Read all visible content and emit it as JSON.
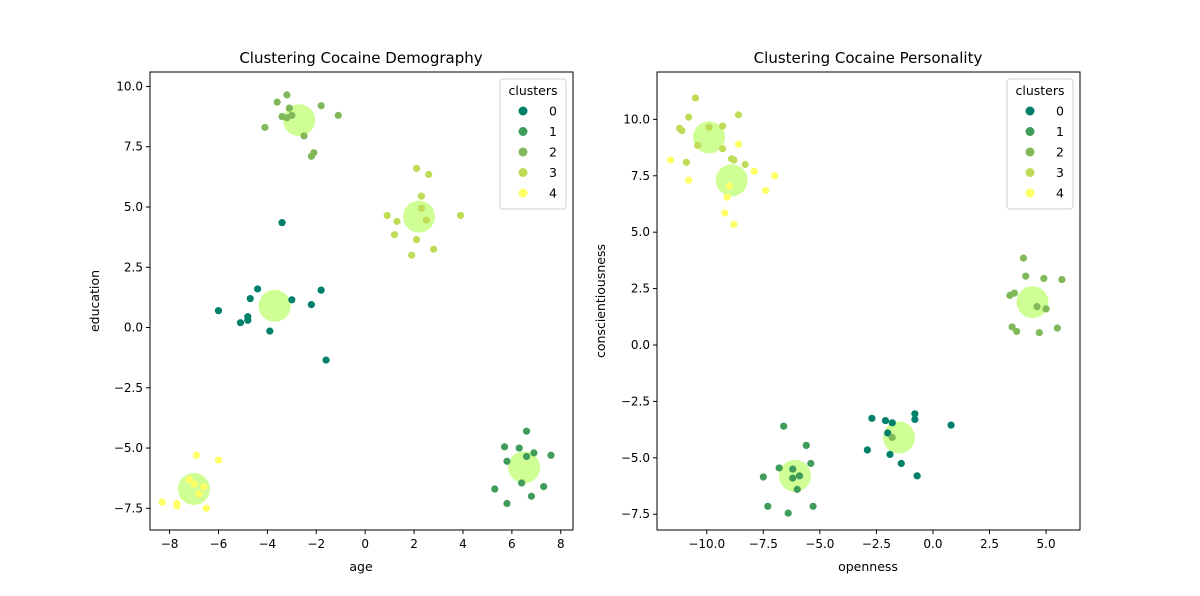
{
  "colors": {
    "cluster": [
      "#00806a",
      "#409c5a",
      "#80b85a",
      "#bfdc57",
      "#ffff66"
    ],
    "centroid": "#bfff70"
  },
  "chart_data": [
    {
      "type": "scatter",
      "title": "Clustering Cocaine Demography",
      "xlabel": "age",
      "ylabel": "education",
      "xlim": [
        -8.8,
        8.5
      ],
      "ylim": [
        -8.4,
        10.6
      ],
      "xticks": [
        -8,
        -6,
        -4,
        -2,
        0,
        2,
        4,
        6,
        8
      ],
      "xtick_labels": [
        "−8",
        "−6",
        "−4",
        "−2",
        "0",
        "2",
        "4",
        "6",
        "8"
      ],
      "yticks": [
        -7.5,
        -5.0,
        -2.5,
        0.0,
        2.5,
        5.0,
        7.5,
        10.0
      ],
      "ytick_labels": [
        "−7.5",
        "−5.0",
        "−2.5",
        "0.0",
        "2.5",
        "5.0",
        "7.5",
        "10.0"
      ],
      "legend": {
        "title": "clusters",
        "labels": [
          "0",
          "1",
          "2",
          "3",
          "4"
        ],
        "position": "upper right"
      },
      "centroids": [
        [
          -3.7,
          0.9
        ],
        [
          6.5,
          -5.8
        ],
        [
          -2.7,
          8.6
        ],
        [
          2.2,
          4.6
        ],
        [
          -7.0,
          -6.7
        ]
      ],
      "series": [
        {
          "name": "0",
          "points": [
            [
              -3.4,
              4.35
            ],
            [
              -4.4,
              1.6
            ],
            [
              -4.7,
              1.2
            ],
            [
              -3.0,
              1.15
            ],
            [
              -1.8,
              1.55
            ],
            [
              -2.2,
              0.95
            ],
            [
              -6.0,
              0.7
            ],
            [
              -4.8,
              0.45
            ],
            [
              -4.8,
              0.3
            ],
            [
              -5.1,
              0.2
            ],
            [
              -3.9,
              -0.15
            ],
            [
              -1.6,
              -1.35
            ]
          ]
        },
        {
          "name": "1",
          "points": [
            [
              6.6,
              -4.3
            ],
            [
              5.7,
              -4.95
            ],
            [
              6.3,
              -5.0
            ],
            [
              6.9,
              -5.2
            ],
            [
              7.6,
              -5.3
            ],
            [
              5.8,
              -5.55
            ],
            [
              6.6,
              -5.35
            ],
            [
              7.3,
              -6.6
            ],
            [
              6.4,
              -6.45
            ],
            [
              5.3,
              -6.7
            ],
            [
              6.8,
              -7.0
            ],
            [
              5.8,
              -7.3
            ]
          ]
        },
        {
          "name": "2",
          "points": [
            [
              -3.2,
              9.65
            ],
            [
              -3.6,
              9.35
            ],
            [
              -3.1,
              9.1
            ],
            [
              -1.8,
              9.2
            ],
            [
              -3.0,
              8.8
            ],
            [
              -3.4,
              8.75
            ],
            [
              -3.2,
              8.7
            ],
            [
              -1.1,
              8.8
            ],
            [
              -4.1,
              8.3
            ],
            [
              -2.5,
              7.95
            ],
            [
              -2.1,
              7.25
            ],
            [
              -2.2,
              7.1
            ]
          ]
        },
        {
          "name": "3",
          "points": [
            [
              2.1,
              6.6
            ],
            [
              2.6,
              6.35
            ],
            [
              2.3,
              5.45
            ],
            [
              2.3,
              4.95
            ],
            [
              0.9,
              4.65
            ],
            [
              3.9,
              4.65
            ],
            [
              2.5,
              4.45
            ],
            [
              1.3,
              4.4
            ],
            [
              1.2,
              3.85
            ],
            [
              2.1,
              3.65
            ],
            [
              2.8,
              3.25
            ],
            [
              1.9,
              3.0
            ]
          ]
        },
        {
          "name": "4",
          "points": [
            [
              -6.9,
              -5.3
            ],
            [
              -6.0,
              -5.5
            ],
            [
              -7.2,
              -6.3
            ],
            [
              -7.0,
              -6.5
            ],
            [
              -6.6,
              -6.6
            ],
            [
              -6.8,
              -6.9
            ],
            [
              -8.3,
              -7.25
            ],
            [
              -7.7,
              -7.3
            ],
            [
              -7.7,
              -7.4
            ],
            [
              -6.5,
              -7.5
            ]
          ]
        }
      ]
    },
    {
      "type": "scatter",
      "title": "Clustering Cocaine Personality",
      "xlabel": "openness",
      "ylabel": "conscientiousness",
      "xlim": [
        -12.2,
        6.5
      ],
      "ylim": [
        -8.2,
        12.1
      ],
      "xticks": [
        -10.0,
        -7.5,
        -5.0,
        -2.5,
        0.0,
        2.5,
        5.0
      ],
      "xtick_labels": [
        "−10.0",
        "−7.5",
        "−5.0",
        "−2.5",
        "0.0",
        "2.5",
        "5.0"
      ],
      "yticks": [
        -7.5,
        -5.0,
        -2.5,
        0.0,
        2.5,
        5.0,
        7.5,
        10.0
      ],
      "ytick_labels": [
        "−7.5",
        "−5.0",
        "−2.5",
        "0.0",
        "2.5",
        "5.0",
        "7.5",
        "10.0"
      ],
      "legend": {
        "title": "clusters",
        "labels": [
          "0",
          "1",
          "2",
          "3",
          "4"
        ],
        "position": "upper right"
      },
      "centroids": [
        [
          -9.9,
          9.2
        ],
        [
          -8.9,
          7.3
        ],
        [
          4.4,
          1.9
        ],
        [
          -1.5,
          -4.1
        ],
        [
          -6.1,
          -5.8
        ]
      ],
      "series": [
        {
          "name": "0",
          "points": [
            [
              -2.7,
              -3.25
            ],
            [
              -2.1,
              -3.35
            ],
            [
              -1.8,
              -3.45
            ],
            [
              -0.8,
              -3.05
            ],
            [
              -0.8,
              -3.3
            ],
            [
              0.8,
              -3.55
            ],
            [
              -2.9,
              -4.65
            ],
            [
              -1.9,
              -4.85
            ],
            [
              -1.4,
              -5.25
            ],
            [
              -0.7,
              -5.8
            ],
            [
              -2.0,
              -3.9
            ]
          ]
        },
        {
          "name": "1",
          "points": [
            [
              -6.6,
              -3.6
            ],
            [
              -5.6,
              -4.45
            ],
            [
              -6.8,
              -5.45
            ],
            [
              -6.2,
              -5.5
            ],
            [
              -5.4,
              -5.25
            ],
            [
              -7.5,
              -5.85
            ],
            [
              -5.9,
              -5.8
            ],
            [
              -6.2,
              -5.9
            ],
            [
              -6.0,
              -6.4
            ],
            [
              -7.3,
              -7.15
            ],
            [
              -5.3,
              -7.15
            ],
            [
              -6.4,
              -7.45
            ]
          ]
        },
        {
          "name": "2",
          "points": [
            [
              4.0,
              3.85
            ],
            [
              3.6,
              2.3
            ],
            [
              4.1,
              3.05
            ],
            [
              4.9,
              2.95
            ],
            [
              5.7,
              2.9
            ],
            [
              3.4,
              2.2
            ],
            [
              4.6,
              1.7
            ],
            [
              5.0,
              1.6
            ],
            [
              3.5,
              0.8
            ],
            [
              3.7,
              0.6
            ],
            [
              4.7,
              0.55
            ],
            [
              5.5,
              0.75
            ],
            [
              -1.8,
              -4.1
            ]
          ]
        },
        {
          "name": "3",
          "points": [
            [
              -10.5,
              10.95
            ],
            [
              -10.8,
              10.1
            ],
            [
              -8.6,
              10.2
            ],
            [
              -11.2,
              9.6
            ],
            [
              -11.1,
              9.5
            ],
            [
              -9.3,
              9.7
            ],
            [
              -9.9,
              9.65
            ],
            [
              -10.4,
              8.85
            ],
            [
              -9.3,
              8.7
            ],
            [
              -10.9,
              8.1
            ],
            [
              -8.8,
              8.2
            ],
            [
              -8.3,
              8.0
            ],
            [
              -8.9,
              8.25
            ]
          ]
        },
        {
          "name": "4",
          "points": [
            [
              -11.6,
              8.2
            ],
            [
              -8.6,
              8.9
            ],
            [
              -7.9,
              7.7
            ],
            [
              -7.0,
              7.5
            ],
            [
              -10.8,
              7.3
            ],
            [
              -9.0,
              7.05
            ],
            [
              -7.4,
              6.85
            ],
            [
              -9.1,
              6.55
            ],
            [
              -9.2,
              5.85
            ],
            [
              -8.8,
              5.35
            ]
          ]
        }
      ]
    }
  ]
}
